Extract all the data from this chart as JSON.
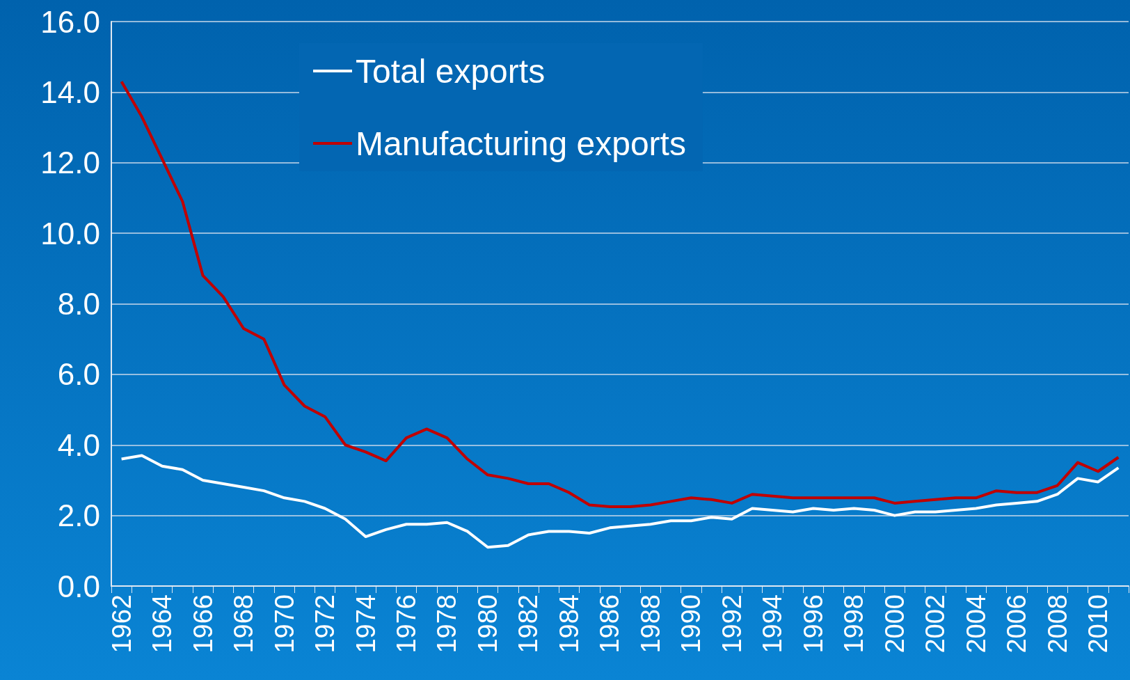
{
  "chart_data": {
    "type": "line",
    "categories": [
      "1962",
      null,
      "1964",
      null,
      "1966",
      null,
      "1968",
      null,
      "1970",
      null,
      "1972",
      null,
      "1974",
      null,
      "1976",
      null,
      "1978",
      null,
      "1980",
      null,
      "1982",
      null,
      "1984",
      null,
      "1986",
      null,
      "1988",
      null,
      "1990",
      null,
      "1992",
      null,
      "1994",
      null,
      "1996",
      null,
      "1998",
      null,
      "2000",
      null,
      "2002",
      null,
      "2004",
      null,
      "2006",
      null,
      "2008",
      null,
      "2010",
      null
    ],
    "series": [
      {
        "name": "Total exports",
        "color": "#ffffff",
        "values": [
          3.6,
          3.7,
          3.4,
          3.3,
          3.0,
          2.9,
          2.8,
          2.7,
          2.5,
          2.4,
          2.2,
          1.9,
          1.4,
          1.6,
          1.75,
          1.75,
          1.8,
          1.55,
          1.1,
          1.15,
          1.45,
          1.55,
          1.55,
          1.5,
          1.65,
          1.7,
          1.75,
          1.85,
          1.85,
          1.95,
          1.9,
          2.2,
          2.15,
          2.1,
          2.2,
          2.15,
          2.2,
          2.15,
          2.0,
          2.1,
          2.1,
          2.15,
          2.2,
          2.3,
          2.35,
          2.4,
          2.6,
          3.05,
          2.95,
          3.35
        ]
      },
      {
        "name": "Manufacturing exports",
        "color": "#c00000",
        "values": [
          14.3,
          13.3,
          12.1,
          10.9,
          8.8,
          8.2,
          7.3,
          7.0,
          5.7,
          5.1,
          4.8,
          4.0,
          3.8,
          3.55,
          4.2,
          4.45,
          4.2,
          3.6,
          3.15,
          3.05,
          2.9,
          2.9,
          2.65,
          2.3,
          2.25,
          2.25,
          2.3,
          2.4,
          2.5,
          2.45,
          2.35,
          2.6,
          2.55,
          2.5,
          2.5,
          2.5,
          2.5,
          2.5,
          2.35,
          2.4,
          2.45,
          2.5,
          2.5,
          2.7,
          2.65,
          2.65,
          2.85,
          3.5,
          3.25,
          3.65
        ]
      }
    ],
    "ylim": [
      0,
      16
    ],
    "yticks": [
      {
        "value": 0,
        "label": "0.0"
      },
      {
        "value": 2,
        "label": "2.0"
      },
      {
        "value": 4,
        "label": "4.0"
      },
      {
        "value": 6,
        "label": "6.0"
      },
      {
        "value": 8,
        "label": "8.0"
      },
      {
        "value": 10,
        "label": "10.0"
      },
      {
        "value": 12,
        "label": "12.0"
      },
      {
        "value": 14,
        "label": "14.0"
      },
      {
        "value": 16,
        "label": "16.0"
      }
    ],
    "grid": "y",
    "legend": "top left",
    "marker": "none",
    "line_style": "solid"
  }
}
